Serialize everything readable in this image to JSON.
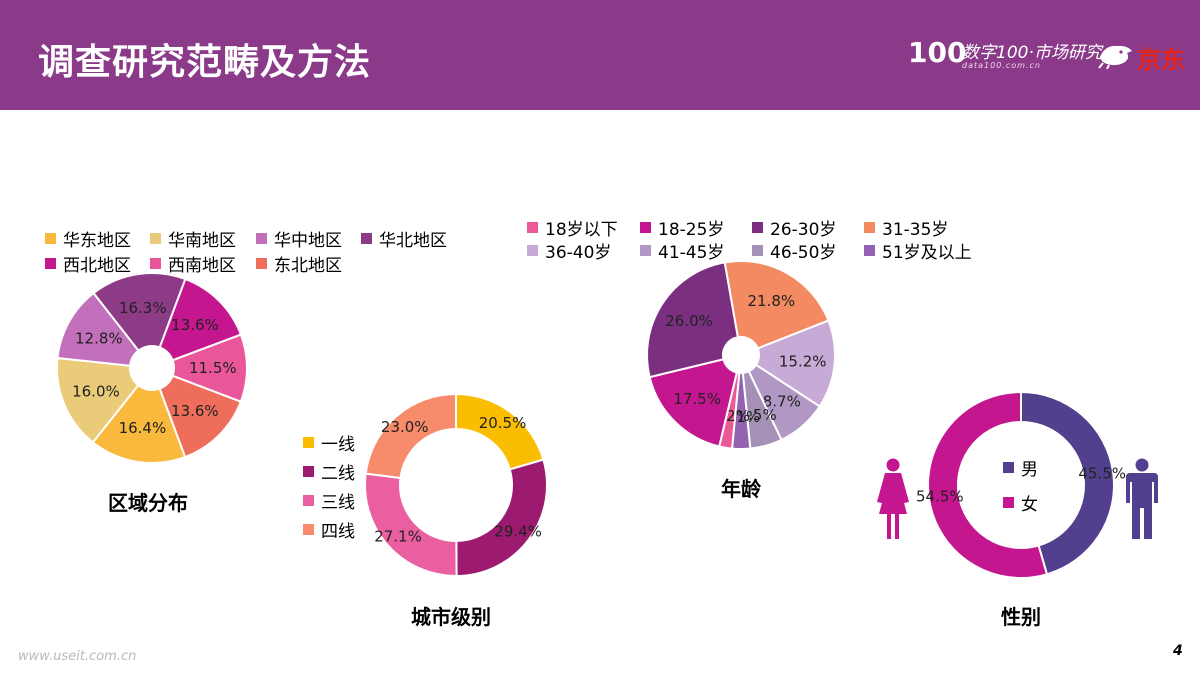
{
  "title": "调查研究范畴及方法",
  "logo": {
    "number": "100",
    "text": "数字100·市场研究",
    "subtext": "data100.com.cn",
    "brand": "京东"
  },
  "footer_url": "www.useit.com.cn",
  "page_number": "4",
  "chart_data": [
    {
      "type": "pie",
      "title": "区域分布",
      "categories": [
        "华东地区",
        "华南地区",
        "华中地区",
        "华北地区",
        "西北地区",
        "西南地区",
        "东北地区"
      ],
      "colors": [
        "#f9b93c",
        "#e9cb7a",
        "#c26fbc",
        "#8d3a87",
        "#c4168f",
        "#e9579a",
        "#ef6d5b"
      ],
      "slice_order": [
        3,
        4,
        5,
        6,
        0,
        1,
        2
      ],
      "values": [
        16.4,
        16.0,
        12.8,
        16.3,
        13.6,
        11.5,
        13.6
      ]
    },
    {
      "type": "donut",
      "title": "城市级别",
      "categories": [
        "一线",
        "二线",
        "三线",
        "四线"
      ],
      "colors": [
        "#fbbd00",
        "#9c1a6f",
        "#ea5fa0",
        "#f78b6b"
      ],
      "values": [
        20.5,
        29.4,
        27.1,
        23.0
      ]
    },
    {
      "type": "pie",
      "title": "年龄",
      "categories": [
        "18岁以下",
        "18-25岁",
        "26-30岁",
        "31-35岁",
        "36-40岁",
        "41-45岁",
        "46-50岁",
        "51岁及以上"
      ],
      "colors": [
        "#ea5a96",
        "#c4168f",
        "#7b2f80",
        "#f38a61",
        "#c7aad6",
        "#b198c4",
        "#a591b8",
        "#9363b1"
      ],
      "slice_order": [
        3,
        4,
        5,
        6,
        7,
        0,
        1,
        2
      ],
      "values": [
        2.2,
        17.5,
        26.0,
        21.8,
        15.2,
        8.7,
        5.5,
        3.1
      ]
    },
    {
      "type": "donut",
      "title": "性别",
      "categories": [
        "男",
        "女"
      ],
      "colors": [
        "#523f8e",
        "#c4168f"
      ],
      "values": [
        45.5,
        54.5
      ]
    }
  ]
}
